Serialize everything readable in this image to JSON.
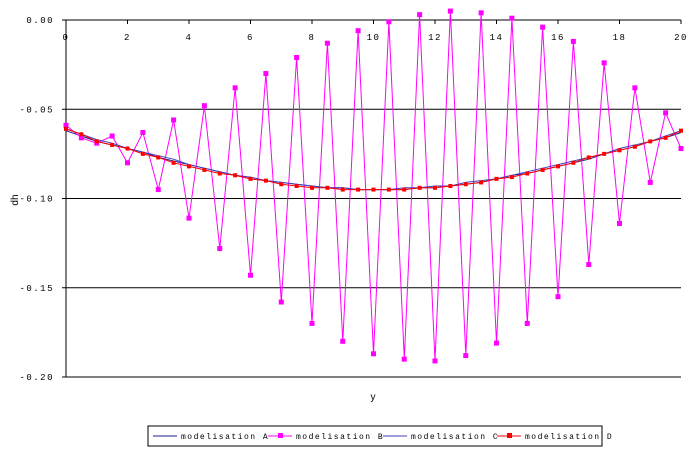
{
  "chart_data": {
    "type": "line",
    "xlabel": "y",
    "ylabel": "dh",
    "xlim": [
      0,
      20
    ],
    "ylim": [
      -0.2,
      0
    ],
    "xticks": [
      0,
      2,
      4,
      6,
      8,
      10,
      12,
      14,
      16,
      18,
      20
    ],
    "yticks": [
      0.0,
      -0.05,
      -0.1,
      -0.15,
      -0.2
    ],
    "xtick_labels": [
      "0",
      "2",
      "4",
      "6",
      "8",
      "10",
      "12",
      "14",
      "16",
      "18",
      "20"
    ],
    "ytick_labels": [
      "0.00",
      "-0.05",
      "-0.10",
      "-0.15",
      "-0.20"
    ],
    "grid": "horizontal",
    "legend_position": "bottom",
    "x_axis_position": "top",
    "series": [
      {
        "name": "modelisation A",
        "color": "#1f1f8f",
        "marker": "none",
        "x": [
          0,
          0.5,
          1,
          1.5,
          2,
          2.5,
          3,
          3.5,
          4,
          4.5,
          5,
          5.5,
          6,
          6.5,
          7,
          7.5,
          8,
          8.5,
          9,
          9.5,
          10,
          10.5,
          11,
          11.5,
          12,
          12.5,
          13,
          13.5,
          14,
          14.5,
          15,
          15.5,
          16,
          16.5,
          17,
          17.5,
          18,
          18.5,
          19,
          19.5,
          20
        ],
        "values": [
          -0.062,
          -0.065,
          -0.068,
          -0.07,
          -0.072,
          -0.074,
          -0.077,
          -0.079,
          -0.081,
          -0.083,
          -0.085,
          -0.087,
          -0.089,
          -0.09,
          -0.091,
          -0.092,
          -0.093,
          -0.094,
          -0.094,
          -0.095,
          -0.095,
          -0.095,
          -0.095,
          -0.094,
          -0.094,
          -0.093,
          -0.092,
          -0.091,
          -0.089,
          -0.087,
          -0.086,
          -0.084,
          -0.082,
          -0.08,
          -0.078,
          -0.075,
          -0.073,
          -0.071,
          -0.068,
          -0.066,
          -0.063
        ]
      },
      {
        "name": "modelisation B",
        "color": "#ff00ff",
        "marker": "square",
        "x": [
          0,
          0.5,
          1,
          1.5,
          2,
          2.5,
          3,
          3.5,
          4,
          4.5,
          5,
          5.5,
          6,
          6.5,
          7,
          7.5,
          8,
          8.5,
          9,
          9.5,
          10,
          10.5,
          11,
          11.5,
          12,
          12.5,
          13,
          13.5,
          14,
          14.5,
          15,
          15.5,
          16,
          16.5,
          17,
          17.5,
          18,
          18.5,
          19,
          19.5,
          20
        ],
        "values": [
          -0.059,
          -0.066,
          -0.069,
          -0.065,
          -0.08,
          -0.063,
          -0.095,
          -0.056,
          -0.111,
          -0.048,
          -0.128,
          -0.038,
          -0.143,
          -0.03,
          -0.158,
          -0.021,
          -0.17,
          -0.013,
          -0.18,
          -0.006,
          -0.187,
          -0.001,
          -0.19,
          0.003,
          -0.191,
          0.005,
          -0.188,
          0.004,
          -0.181,
          0.001,
          -0.17,
          -0.004,
          -0.155,
          -0.012,
          -0.137,
          -0.024,
          -0.114,
          -0.038,
          -0.091,
          -0.052,
          -0.072
        ]
      },
      {
        "name": "modelisation C",
        "color": "#4040c0",
        "marker": "none",
        "x": [
          0,
          0.5,
          1,
          1.5,
          2,
          2.5,
          3,
          3.5,
          4,
          4.5,
          5,
          5.5,
          6,
          6.5,
          7,
          7.5,
          8,
          8.5,
          9,
          9.5,
          10,
          10.5,
          11,
          11.5,
          12,
          12.5,
          13,
          13.5,
          14,
          14.5,
          15,
          15.5,
          16,
          16.5,
          17,
          17.5,
          18,
          18.5,
          19,
          19.5,
          20
        ],
        "values": [
          -0.061,
          -0.064,
          -0.067,
          -0.069,
          -0.072,
          -0.074,
          -0.076,
          -0.078,
          -0.081,
          -0.083,
          -0.085,
          -0.087,
          -0.088,
          -0.09,
          -0.091,
          -0.092,
          -0.093,
          -0.094,
          -0.094,
          -0.095,
          -0.095,
          -0.095,
          -0.094,
          -0.094,
          -0.093,
          -0.093,
          -0.091,
          -0.09,
          -0.089,
          -0.087,
          -0.085,
          -0.083,
          -0.081,
          -0.079,
          -0.077,
          -0.075,
          -0.072,
          -0.07,
          -0.068,
          -0.065,
          -0.062
        ]
      },
      {
        "name": "modelisation D",
        "color": "#ff0000",
        "marker": "square",
        "x": [
          0,
          0.5,
          1,
          1.5,
          2,
          2.5,
          3,
          3.5,
          4,
          4.5,
          5,
          5.5,
          6,
          6.5,
          7,
          7.5,
          8,
          8.5,
          9,
          9.5,
          10,
          10.5,
          11,
          11.5,
          12,
          12.5,
          13,
          13.5,
          14,
          14.5,
          15,
          15.5,
          16,
          16.5,
          17,
          17.5,
          18,
          18.5,
          19,
          19.5,
          20
        ],
        "values": [
          -0.061,
          -0.064,
          -0.068,
          -0.07,
          -0.072,
          -0.075,
          -0.077,
          -0.08,
          -0.082,
          -0.084,
          -0.086,
          -0.087,
          -0.089,
          -0.09,
          -0.092,
          -0.093,
          -0.094,
          -0.094,
          -0.095,
          -0.095,
          -0.095,
          -0.095,
          -0.095,
          -0.094,
          -0.094,
          -0.093,
          -0.092,
          -0.091,
          -0.089,
          -0.088,
          -0.086,
          -0.084,
          -0.082,
          -0.08,
          -0.077,
          -0.075,
          -0.073,
          -0.071,
          -0.068,
          -0.066,
          -0.062
        ]
      }
    ]
  }
}
